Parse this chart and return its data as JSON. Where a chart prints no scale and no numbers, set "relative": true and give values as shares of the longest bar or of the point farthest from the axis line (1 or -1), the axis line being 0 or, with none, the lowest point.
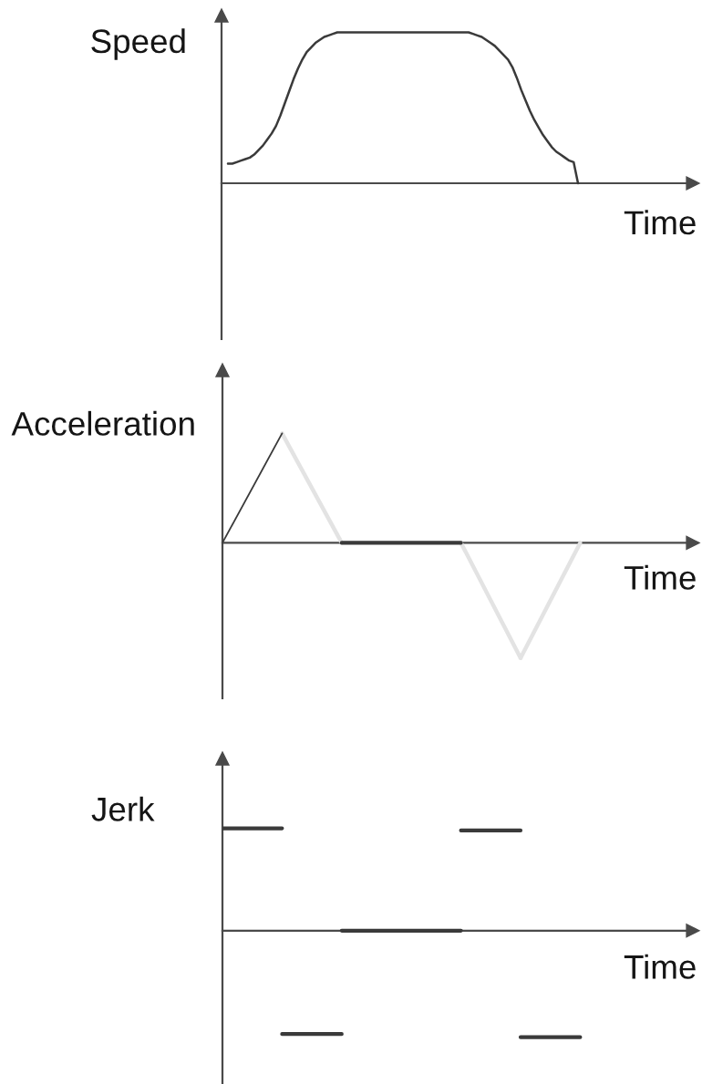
{
  "chart_data": [
    {
      "type": "line",
      "ylabel": "Speed",
      "xlabel": "Time",
      "relative": true,
      "categories": [
        null,
        null,
        null,
        null,
        null,
        null,
        null,
        null,
        null,
        null,
        null,
        null,
        null,
        null,
        null,
        null,
        null,
        null,
        null,
        null,
        null,
        null,
        null,
        null,
        null,
        null,
        null,
        null,
        null,
        null,
        null,
        null,
        null,
        null,
        null,
        null,
        null,
        null,
        null,
        null,
        null,
        null,
        null,
        null,
        null,
        null,
        null,
        null,
        null,
        null,
        null,
        null,
        null,
        null,
        null,
        null,
        null,
        null,
        null,
        null,
        null,
        null,
        null,
        null,
        null,
        null,
        null,
        null,
        null,
        null,
        null,
        null,
        null,
        null,
        null,
        null,
        null,
        null,
        null,
        null,
        null
      ],
      "series": [
        {
          "color": "#3a3a3a",
          "values": [
            0.13,
            0.13,
            0.14,
            0.15,
            0.16,
            0.17,
            0.19,
            0.22,
            0.25,
            0.29,
            0.33,
            0.38,
            0.45,
            0.53,
            0.61,
            0.69,
            0.76,
            0.82,
            0.87,
            0.9,
            0.93,
            0.95,
            0.97,
            0.98,
            0.99,
            1,
            1,
            1,
            1,
            1,
            1,
            1,
            1,
            1,
            1,
            1,
            1,
            1,
            1,
            1,
            1,
            1,
            1,
            1,
            1,
            1,
            1,
            1,
            1,
            1,
            1,
            1,
            1,
            1,
            1,
            1,
            0.99,
            0.98,
            0.97,
            0.95,
            0.93,
            0.91,
            0.88,
            0.85,
            0.82,
            0.77,
            0.7,
            0.62,
            0.55,
            0.48,
            0.42,
            0.37,
            0.32,
            0.28,
            0.24,
            0.21,
            0.19,
            0.17,
            0.15,
            0.14,
            0
          ]
        }
      ]
    },
    {
      "type": "line",
      "ylabel": "Acceleration",
      "xlabel": "Time",
      "relative": true,
      "categories": [
        null,
        null,
        null,
        null,
        null,
        null,
        null
      ],
      "series": [
        {
          "color": "#e3e3e3",
          "values": [
            null,
            0.95,
            0,
            null,
            null,
            null,
            null
          ]
        },
        {
          "color": "#e3e3e3",
          "values": [
            null,
            null,
            null,
            null,
            0,
            -1,
            null
          ]
        },
        {
          "color": "#e3e3e3",
          "values": [
            null,
            null,
            null,
            null,
            null,
            -1,
            0
          ]
        },
        {
          "color": "#3a3a3a",
          "values": [
            0,
            0.95,
            null,
            null,
            null,
            null,
            null
          ]
        },
        {
          "color": "#3a3a3a",
          "values": [
            null,
            null,
            0,
            0,
            0,
            null,
            null
          ]
        }
      ]
    },
    {
      "type": "line",
      "ylabel": "Jerk",
      "xlabel": "Time",
      "relative": true,
      "categories": [
        null,
        null,
        null,
        null,
        null,
        null,
        null
      ],
      "series": [
        {
          "color": "#3a3a3a",
          "values": [
            0.96,
            0.96,
            null,
            null,
            0.94,
            0.94,
            null
          ]
        },
        {
          "color": "#3a3a3a",
          "values": [
            null,
            -0.97,
            -0.97,
            null,
            null,
            -1,
            -1
          ]
        },
        {
          "color": "#3a3a3a",
          "values": [
            null,
            null,
            0,
            0,
            0,
            null,
            null
          ]
        }
      ]
    }
  ]
}
